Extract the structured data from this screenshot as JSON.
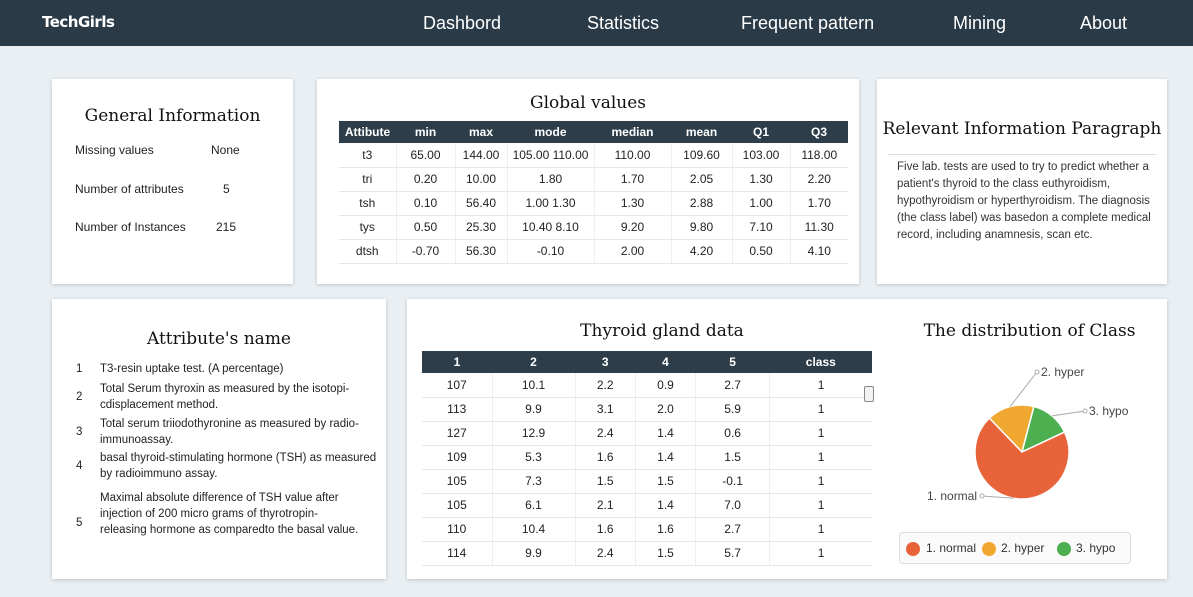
{
  "brand": "TechGirls",
  "nav": [
    "Dashbord",
    "Statistics",
    "Frequent pattern",
    "Mining",
    "About"
  ],
  "general": {
    "title": "General Information",
    "rows": [
      {
        "label": "Missing values",
        "value": "None"
      },
      {
        "label": "Number of attributes",
        "value": "5"
      },
      {
        "label": "Number of Instances",
        "value": "215"
      }
    ]
  },
  "global": {
    "title": "Global values",
    "headers": [
      "Attibute",
      "min",
      "max",
      "mode",
      "median",
      "mean",
      "Q1",
      "Q3"
    ],
    "rows": [
      [
        "t3",
        "65.00",
        "144.00",
        "105.00 110.00",
        "110.00",
        "109.60",
        "103.00",
        "118.00"
      ],
      [
        "tri",
        "0.20",
        "10.00",
        "1.80",
        "1.70",
        "2.05",
        "1.30",
        "2.20"
      ],
      [
        "tsh",
        "0.10",
        "56.40",
        "1.00 1.30",
        "1.30",
        "2.88",
        "1.00",
        "1.70"
      ],
      [
        "tys",
        "0.50",
        "25.30",
        "10.40 8.10",
        "9.20",
        "9.80",
        "7.10",
        "11.30"
      ],
      [
        "dtsh",
        "-0.70",
        "56.30",
        "-0.10",
        "2.00",
        "4.20",
        "0.50",
        "4.10"
      ]
    ]
  },
  "relevant": {
    "title": "Relevant Information Paragraph",
    "text": "Five lab. tests are used to try to predict whether a patient's thyroid to the class euthyroidism, hypothyroidism or hyperthyroidism. The diagnosis (the class label) was basedon a complete medical record, including anamnesis, scan etc."
  },
  "attributes": {
    "title": "Attribute's name",
    "items": [
      {
        "num": "1",
        "text": "T3-resin uptake test. (A percentage)"
      },
      {
        "num": "2",
        "text": "Total Serum thyroxin as measured by the isotopi-cdisplacement method."
      },
      {
        "num": "3",
        "text": "Total serum triiodothyronine as measured by radio-immunoassay."
      },
      {
        "num": "4",
        "text": "basal thyroid-stimulating hormone (TSH) as measured by radioimmuno assay."
      },
      {
        "num": "5",
        "text": "Maximal absolute difference of TSH value after injection of 200 micro grams of thyrotropin-releasing hormone as comparedto the basal value."
      }
    ]
  },
  "thyroid": {
    "title": "Thyroid gland data",
    "headers": [
      "1",
      "2",
      "3",
      "4",
      "5",
      "class"
    ],
    "rows": [
      [
        "107",
        "10.1",
        "2.2",
        "0.9",
        "2.7",
        "1"
      ],
      [
        "113",
        "9.9",
        "3.1",
        "2.0",
        "5.9",
        "1"
      ],
      [
        "127",
        "12.9",
        "2.4",
        "1.4",
        "0.6",
        "1"
      ],
      [
        "109",
        "5.3",
        "1.6",
        "1.4",
        "1.5",
        "1"
      ],
      [
        "105",
        "7.3",
        "1.5",
        "1.5",
        "-0.1",
        "1"
      ],
      [
        "105",
        "6.1",
        "2.1",
        "1.4",
        "7.0",
        "1"
      ],
      [
        "110",
        "10.4",
        "1.6",
        "1.6",
        "2.7",
        "1"
      ],
      [
        "114",
        "9.9",
        "2.4",
        "1.5",
        "5.7",
        "1"
      ]
    ]
  },
  "chart_data": {
    "type": "pie",
    "title": "The distribution of Class",
    "categories": [
      "1. normal",
      "2. hyper",
      "3. hypo"
    ],
    "values": [
      150,
      35,
      30
    ],
    "colors": [
      "#e8623a",
      "#f0a830",
      "#4caf50"
    ],
    "legend": "bottom"
  }
}
